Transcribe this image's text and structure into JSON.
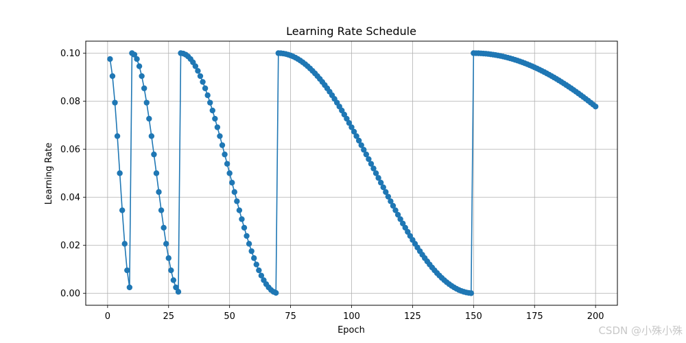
{
  "chart_data": {
    "type": "line",
    "title": "Learning Rate Schedule",
    "xlabel": "Epoch",
    "ylabel": "Learning Rate",
    "xlim": [
      -8.95,
      208.95
    ],
    "ylim": [
      -0.005,
      0.105
    ],
    "xticks": [
      0,
      25,
      50,
      75,
      100,
      125,
      150,
      175,
      200
    ],
    "yticks": [
      0.0,
      0.02,
      0.04,
      0.06,
      0.08,
      0.1
    ],
    "ytick_labels": [
      "0.00",
      "0.02",
      "0.04",
      "0.06",
      "0.08",
      "0.10"
    ],
    "grid": true,
    "marker": "circle",
    "series_color": "#1f77b4",
    "schedule": "cosine annealing with warm restarts (T_0=10, T_mult=2, eta_max=0.1, eta_min=0)",
    "epochs": [
      1,
      200
    ],
    "sample_points": [
      {
        "epoch": 1,
        "lr": 0.0976
      },
      {
        "epoch": 5,
        "lr": 0.05
      },
      {
        "epoch": 9,
        "lr": 0.0024
      },
      {
        "epoch": 10,
        "lr": 0.1
      },
      {
        "epoch": 20,
        "lr": 0.05
      },
      {
        "epoch": 29,
        "lr": 0.0006
      },
      {
        "epoch": 30,
        "lr": 0.1
      },
      {
        "epoch": 50,
        "lr": 0.05
      },
      {
        "epoch": 69,
        "lr": 0.0002
      },
      {
        "epoch": 70,
        "lr": 0.1
      },
      {
        "epoch": 110,
        "lr": 0.05
      },
      {
        "epoch": 149,
        "lr": 0.0
      },
      {
        "epoch": 150,
        "lr": 0.1
      },
      {
        "epoch": 200,
        "lr": 0.078
      }
    ]
  },
  "watermark": "CSDN @小殊小殊"
}
